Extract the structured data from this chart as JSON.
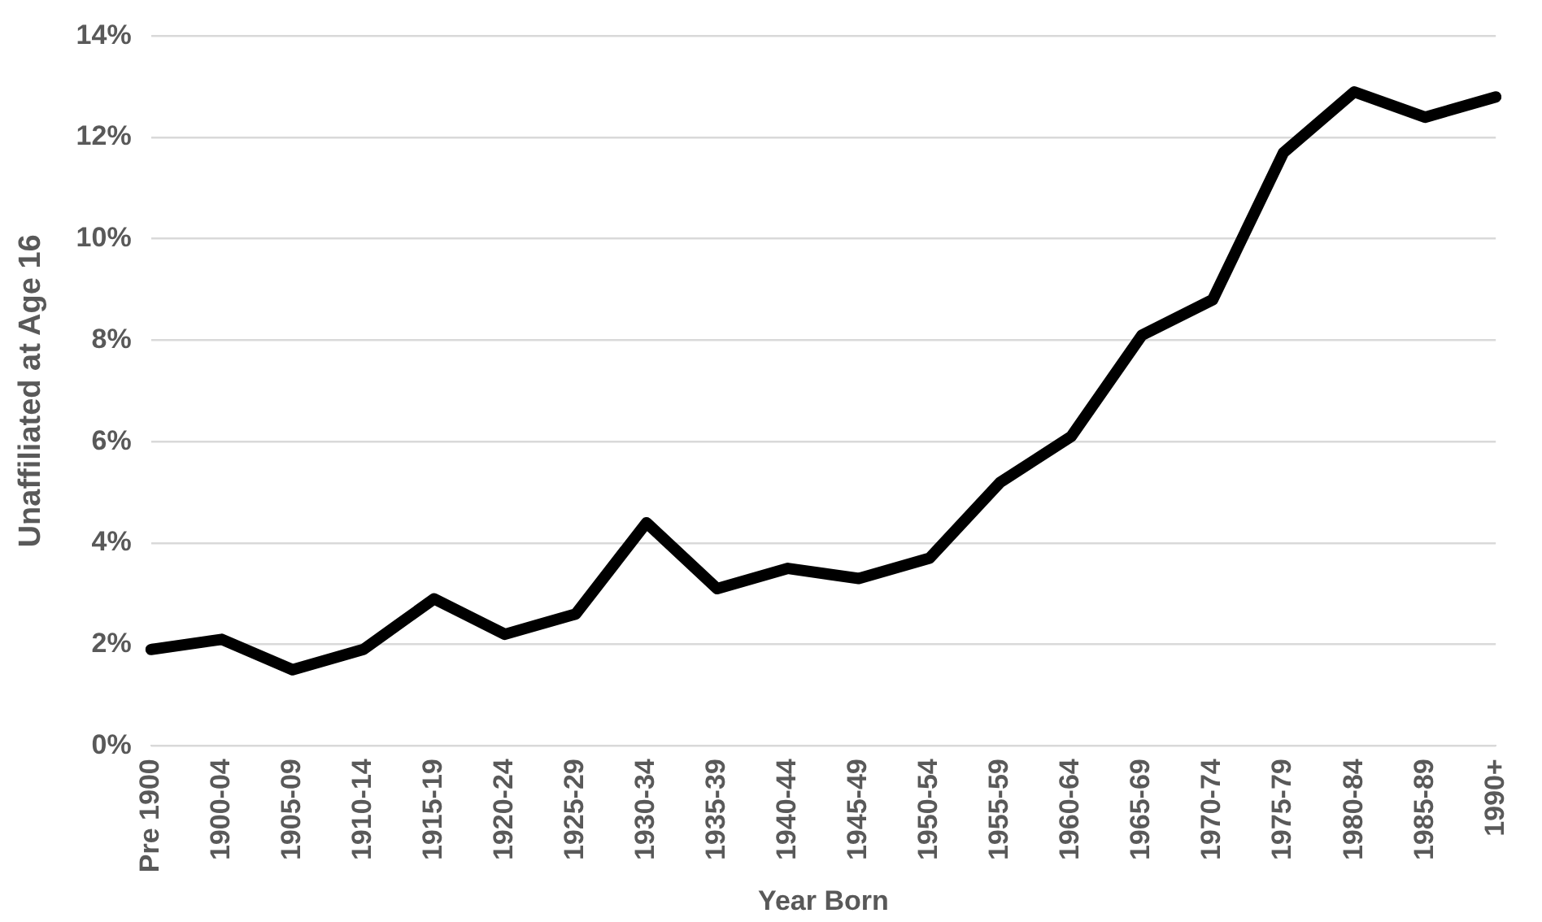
{
  "chart_data": {
    "type": "line",
    "xlabel": "Year Born",
    "ylabel": "Unaffiliated at Age 16",
    "categories": [
      "Pre 1900",
      "1900-04",
      "1905-09",
      "1910-14",
      "1915-19",
      "1920-24",
      "1925-29",
      "1930-34",
      "1935-39",
      "1940-44",
      "1945-49",
      "1950-54",
      "1955-59",
      "1960-64",
      "1965-69",
      "1970-74",
      "1975-79",
      "1980-84",
      "1985-89",
      "1990+"
    ],
    "series": [
      {
        "color": "#000000",
        "values": [
          1.9,
          2.1,
          1.5,
          1.9,
          2.9,
          2.2,
          2.6,
          4.4,
          3.1,
          3.5,
          3.3,
          3.7,
          5.2,
          6.1,
          8.1,
          8.8,
          11.7,
          12.9,
          12.4,
          12.8
        ]
      }
    ],
    "ylim": [
      0,
      14
    ],
    "yticks": [
      {
        "value": 0,
        "label": "0%"
      },
      {
        "value": 2,
        "label": "2%"
      },
      {
        "value": 4,
        "label": "4%"
      },
      {
        "value": 6,
        "label": "6%"
      },
      {
        "value": 8,
        "label": "8%"
      },
      {
        "value": 10,
        "label": "10%"
      },
      {
        "value": 12,
        "label": "12%"
      },
      {
        "value": 14,
        "label": "14%"
      }
    ],
    "grid": "y",
    "legend": false,
    "marker": "none",
    "line_style": "solid"
  }
}
